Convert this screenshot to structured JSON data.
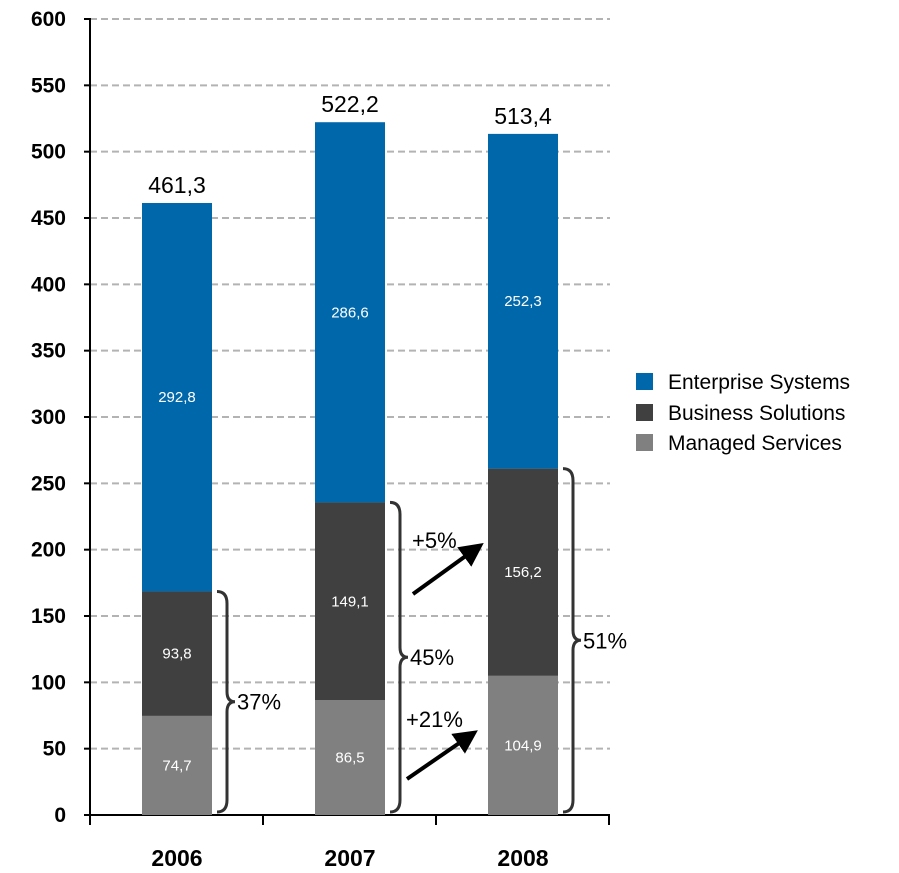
{
  "chart_data": {
    "type": "bar",
    "stacked": true,
    "categories": [
      "2006",
      "2007",
      "2008"
    ],
    "series": [
      {
        "name": "Managed Services",
        "values": [
          74.7,
          86.5,
          104.9
        ],
        "labels": [
          "74,7",
          "86,5",
          "104,9"
        ],
        "color": "#808080"
      },
      {
        "name": "Business Solutions",
        "values": [
          93.8,
          149.1,
          156.2
        ],
        "labels": [
          "93,8",
          "149,1",
          "156,2"
        ],
        "color": "#404040"
      },
      {
        "name": "Enterprise Systems",
        "values": [
          292.8,
          286.6,
          252.3
        ],
        "labels": [
          "292,8",
          "286,6",
          "252,3"
        ],
        "color": "#0068AA"
      }
    ],
    "totals": [
      461.3,
      522.2,
      513.4
    ],
    "total_labels": [
      "461,3",
      "522,2",
      "513,4"
    ],
    "ylim": [
      0,
      600
    ],
    "yticks": [
      0,
      50,
      100,
      150,
      200,
      250,
      300,
      350,
      400,
      450,
      500,
      550,
      600
    ],
    "grid": true,
    "legend_placement": "right",
    "legend_order": [
      "Enterprise Systems",
      "Business Solutions",
      "Managed Services"
    ],
    "annotations": {
      "brackets": [
        "37%",
        "45%",
        "51%"
      ],
      "growth_business_solutions": "+5%",
      "growth_managed_services": "+21%"
    }
  }
}
